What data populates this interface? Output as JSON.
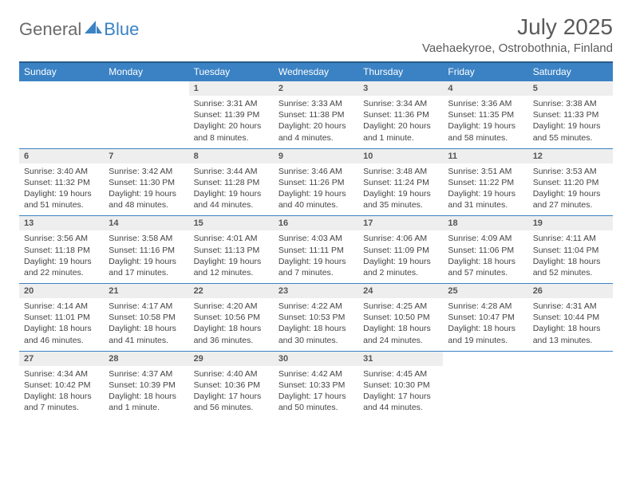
{
  "brand": {
    "part1": "General",
    "part2": "Blue"
  },
  "title": "July 2025",
  "location": "Vaehaekyroe, Ostrobothnia, Finland",
  "colors": {
    "accent": "#3a82c4",
    "header_border": "#2a5a8a",
    "daynum_bg": "#eeeeee",
    "text": "#444444"
  },
  "weekdays": [
    "Sunday",
    "Monday",
    "Tuesday",
    "Wednesday",
    "Thursday",
    "Friday",
    "Saturday"
  ],
  "weeks": [
    [
      null,
      null,
      {
        "n": "1",
        "sr": "Sunrise: 3:31 AM",
        "ss": "Sunset: 11:39 PM",
        "dl": "Daylight: 20 hours and 8 minutes."
      },
      {
        "n": "2",
        "sr": "Sunrise: 3:33 AM",
        "ss": "Sunset: 11:38 PM",
        "dl": "Daylight: 20 hours and 4 minutes."
      },
      {
        "n": "3",
        "sr": "Sunrise: 3:34 AM",
        "ss": "Sunset: 11:36 PM",
        "dl": "Daylight: 20 hours and 1 minute."
      },
      {
        "n": "4",
        "sr": "Sunrise: 3:36 AM",
        "ss": "Sunset: 11:35 PM",
        "dl": "Daylight: 19 hours and 58 minutes."
      },
      {
        "n": "5",
        "sr": "Sunrise: 3:38 AM",
        "ss": "Sunset: 11:33 PM",
        "dl": "Daylight: 19 hours and 55 minutes."
      }
    ],
    [
      {
        "n": "6",
        "sr": "Sunrise: 3:40 AM",
        "ss": "Sunset: 11:32 PM",
        "dl": "Daylight: 19 hours and 51 minutes."
      },
      {
        "n": "7",
        "sr": "Sunrise: 3:42 AM",
        "ss": "Sunset: 11:30 PM",
        "dl": "Daylight: 19 hours and 48 minutes."
      },
      {
        "n": "8",
        "sr": "Sunrise: 3:44 AM",
        "ss": "Sunset: 11:28 PM",
        "dl": "Daylight: 19 hours and 44 minutes."
      },
      {
        "n": "9",
        "sr": "Sunrise: 3:46 AM",
        "ss": "Sunset: 11:26 PM",
        "dl": "Daylight: 19 hours and 40 minutes."
      },
      {
        "n": "10",
        "sr": "Sunrise: 3:48 AM",
        "ss": "Sunset: 11:24 PM",
        "dl": "Daylight: 19 hours and 35 minutes."
      },
      {
        "n": "11",
        "sr": "Sunrise: 3:51 AM",
        "ss": "Sunset: 11:22 PM",
        "dl": "Daylight: 19 hours and 31 minutes."
      },
      {
        "n": "12",
        "sr": "Sunrise: 3:53 AM",
        "ss": "Sunset: 11:20 PM",
        "dl": "Daylight: 19 hours and 27 minutes."
      }
    ],
    [
      {
        "n": "13",
        "sr": "Sunrise: 3:56 AM",
        "ss": "Sunset: 11:18 PM",
        "dl": "Daylight: 19 hours and 22 minutes."
      },
      {
        "n": "14",
        "sr": "Sunrise: 3:58 AM",
        "ss": "Sunset: 11:16 PM",
        "dl": "Daylight: 19 hours and 17 minutes."
      },
      {
        "n": "15",
        "sr": "Sunrise: 4:01 AM",
        "ss": "Sunset: 11:13 PM",
        "dl": "Daylight: 19 hours and 12 minutes."
      },
      {
        "n": "16",
        "sr": "Sunrise: 4:03 AM",
        "ss": "Sunset: 11:11 PM",
        "dl": "Daylight: 19 hours and 7 minutes."
      },
      {
        "n": "17",
        "sr": "Sunrise: 4:06 AM",
        "ss": "Sunset: 11:09 PM",
        "dl": "Daylight: 19 hours and 2 minutes."
      },
      {
        "n": "18",
        "sr": "Sunrise: 4:09 AM",
        "ss": "Sunset: 11:06 PM",
        "dl": "Daylight: 18 hours and 57 minutes."
      },
      {
        "n": "19",
        "sr": "Sunrise: 4:11 AM",
        "ss": "Sunset: 11:04 PM",
        "dl": "Daylight: 18 hours and 52 minutes."
      }
    ],
    [
      {
        "n": "20",
        "sr": "Sunrise: 4:14 AM",
        "ss": "Sunset: 11:01 PM",
        "dl": "Daylight: 18 hours and 46 minutes."
      },
      {
        "n": "21",
        "sr": "Sunrise: 4:17 AM",
        "ss": "Sunset: 10:58 PM",
        "dl": "Daylight: 18 hours and 41 minutes."
      },
      {
        "n": "22",
        "sr": "Sunrise: 4:20 AM",
        "ss": "Sunset: 10:56 PM",
        "dl": "Daylight: 18 hours and 36 minutes."
      },
      {
        "n": "23",
        "sr": "Sunrise: 4:22 AM",
        "ss": "Sunset: 10:53 PM",
        "dl": "Daylight: 18 hours and 30 minutes."
      },
      {
        "n": "24",
        "sr": "Sunrise: 4:25 AM",
        "ss": "Sunset: 10:50 PM",
        "dl": "Daylight: 18 hours and 24 minutes."
      },
      {
        "n": "25",
        "sr": "Sunrise: 4:28 AM",
        "ss": "Sunset: 10:47 PM",
        "dl": "Daylight: 18 hours and 19 minutes."
      },
      {
        "n": "26",
        "sr": "Sunrise: 4:31 AM",
        "ss": "Sunset: 10:44 PM",
        "dl": "Daylight: 18 hours and 13 minutes."
      }
    ],
    [
      {
        "n": "27",
        "sr": "Sunrise: 4:34 AM",
        "ss": "Sunset: 10:42 PM",
        "dl": "Daylight: 18 hours and 7 minutes."
      },
      {
        "n": "28",
        "sr": "Sunrise: 4:37 AM",
        "ss": "Sunset: 10:39 PM",
        "dl": "Daylight: 18 hours and 1 minute."
      },
      {
        "n": "29",
        "sr": "Sunrise: 4:40 AM",
        "ss": "Sunset: 10:36 PM",
        "dl": "Daylight: 17 hours and 56 minutes."
      },
      {
        "n": "30",
        "sr": "Sunrise: 4:42 AM",
        "ss": "Sunset: 10:33 PM",
        "dl": "Daylight: 17 hours and 50 minutes."
      },
      {
        "n": "31",
        "sr": "Sunrise: 4:45 AM",
        "ss": "Sunset: 10:30 PM",
        "dl": "Daylight: 17 hours and 44 minutes."
      },
      null,
      null
    ]
  ]
}
